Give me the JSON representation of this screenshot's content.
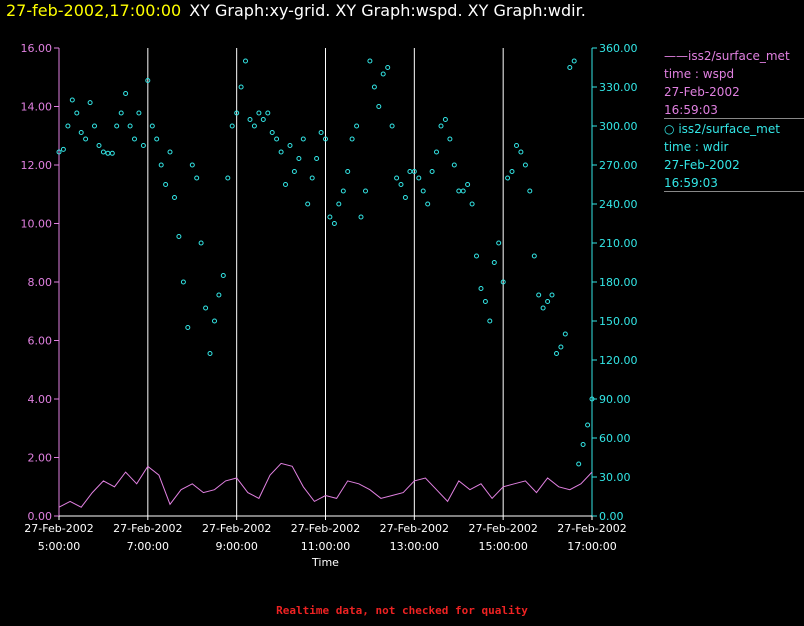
{
  "header": {
    "timestamp": "27-feb-2002,17:00:00",
    "title": "XY Graph:xy-grid.  XY Graph:wspd.  XY Graph:wdir."
  },
  "legend": [
    {
      "symbol": "——",
      "source": "iss2/surface_met",
      "var": "time : wspd",
      "date": "27-Feb-2002",
      "time": "16:59:03",
      "color": "#e080e0"
    },
    {
      "symbol": "○",
      "source": "iss2/surface_met",
      "var": "time : wdir",
      "date": "27-Feb-2002",
      "time": "16:59:03",
      "color": "#33e6e6"
    }
  ],
  "footer": "Realtime data, not checked for quality",
  "chart_data": {
    "type": "line",
    "xlabel": "Time",
    "x_ticks": [
      {
        "date": "27-Feb-2002",
        "time": "5:00:00",
        "h": 5
      },
      {
        "date": "27-Feb-2002",
        "time": "7:00:00",
        "h": 7
      },
      {
        "date": "27-Feb-2002",
        "time": "9:00:00",
        "h": 9
      },
      {
        "date": "27-Feb-2002",
        "time": "11:00:00",
        "h": 11
      },
      {
        "date": "27-Feb-2002",
        "time": "13:00:00",
        "h": 13
      },
      {
        "date": "27-Feb-2002",
        "time": "15:00:00",
        "h": 15
      },
      {
        "date": "27-Feb-2002",
        "time": "17:00:00",
        "h": 17
      }
    ],
    "xlim": [
      5,
      17
    ],
    "grid": "vertical",
    "legend_position": "right",
    "y_left": {
      "ylim": [
        0,
        16
      ],
      "ticks": [
        "0.00",
        "2.00",
        "4.00",
        "6.00",
        "8.00",
        "10.00",
        "12.00",
        "14.00",
        "16.00"
      ],
      "color": "#e080e0"
    },
    "y_right": {
      "ylim": [
        0,
        360
      ],
      "ticks": [
        "0.00",
        "30.00",
        "60.00",
        "90.00",
        "120.00",
        "150.00",
        "180.00",
        "210.00",
        "240.00",
        "270.00",
        "300.00",
        "330.00",
        "360.00"
      ],
      "color": "#33e6e6"
    },
    "series": [
      {
        "name": "wspd",
        "axis": "left",
        "style": "line",
        "color": "#e080e0",
        "x": [
          5.0,
          5.25,
          5.5,
          5.75,
          6.0,
          6.25,
          6.5,
          6.75,
          7.0,
          7.25,
          7.5,
          7.75,
          8.0,
          8.25,
          8.5,
          8.75,
          9.0,
          9.25,
          9.5,
          9.75,
          10.0,
          10.25,
          10.5,
          10.75,
          11.0,
          11.25,
          11.5,
          11.75,
          12.0,
          12.25,
          12.5,
          12.75,
          13.0,
          13.25,
          13.5,
          13.75,
          14.0,
          14.25,
          14.5,
          14.75,
          15.0,
          15.25,
          15.5,
          15.75,
          16.0,
          16.25,
          16.5,
          16.75,
          17.0
        ],
        "values": [
          0.3,
          0.5,
          0.3,
          0.8,
          1.2,
          1.0,
          1.5,
          1.1,
          1.7,
          1.4,
          0.4,
          0.9,
          1.1,
          0.8,
          0.9,
          1.2,
          1.3,
          0.8,
          0.6,
          1.4,
          1.8,
          1.7,
          1.0,
          0.5,
          0.7,
          0.6,
          1.2,
          1.1,
          0.9,
          0.6,
          0.7,
          0.8,
          1.2,
          1.3,
          0.9,
          0.5,
          1.2,
          0.9,
          1.1,
          0.6,
          1.0,
          1.1,
          1.2,
          0.8,
          1.3,
          1.0,
          0.9,
          1.1,
          1.5
        ]
      },
      {
        "name": "wdir",
        "axis": "right",
        "style": "scatter",
        "color": "#33e6e6",
        "x": [
          5.0,
          5.1,
          5.2,
          5.3,
          5.4,
          5.5,
          5.6,
          5.7,
          5.8,
          5.9,
          6.0,
          6.1,
          6.2,
          6.3,
          6.4,
          6.5,
          6.6,
          6.7,
          6.8,
          6.9,
          7.0,
          7.1,
          7.2,
          7.3,
          7.4,
          7.5,
          7.6,
          7.7,
          7.8,
          7.9,
          8.0,
          8.1,
          8.2,
          8.3,
          8.4,
          8.5,
          8.6,
          8.7,
          8.8,
          8.9,
          9.0,
          9.1,
          9.2,
          9.3,
          9.4,
          9.5,
          9.6,
          9.7,
          9.8,
          9.9,
          10.0,
          10.1,
          10.2,
          10.3,
          10.4,
          10.5,
          10.6,
          10.7,
          10.8,
          10.9,
          11.0,
          11.1,
          11.2,
          11.3,
          11.4,
          11.5,
          11.6,
          11.7,
          11.8,
          11.9,
          12.0,
          12.1,
          12.2,
          12.3,
          12.4,
          12.5,
          12.6,
          12.7,
          12.8,
          12.9,
          13.0,
          13.1,
          13.2,
          13.3,
          13.4,
          13.5,
          13.6,
          13.7,
          13.8,
          13.9,
          14.0,
          14.1,
          14.2,
          14.3,
          14.4,
          14.5,
          14.6,
          14.7,
          14.8,
          14.9,
          15.0,
          15.1,
          15.2,
          15.3,
          15.4,
          15.5,
          15.6,
          15.7,
          15.8,
          15.9,
          16.0,
          16.1,
          16.2,
          16.3,
          16.4,
          16.5,
          16.6,
          16.7,
          16.8,
          16.9,
          17.0
        ],
        "values": [
          280,
          282,
          300,
          320,
          310,
          295,
          290,
          318,
          300,
          285,
          280,
          279,
          279,
          300,
          310,
          325,
          300,
          290,
          310,
          285,
          335,
          300,
          290,
          270,
          255,
          280,
          245,
          215,
          180,
          145,
          270,
          260,
          210,
          160,
          125,
          150,
          170,
          185,
          260,
          300,
          310,
          330,
          350,
          305,
          300,
          310,
          305,
          310,
          295,
          290,
          280,
          255,
          285,
          265,
          275,
          290,
          240,
          260,
          275,
          295,
          290,
          230,
          225,
          240,
          250,
          265,
          290,
          300,
          230,
          250,
          350,
          330,
          315,
          340,
          345,
          300,
          260,
          255,
          245,
          265,
          265,
          260,
          250,
          240,
          265,
          280,
          300,
          305,
          290,
          270,
          250,
          250,
          255,
          240,
          200,
          175,
          165,
          150,
          195,
          210,
          180,
          260,
          265,
          285,
          280,
          270,
          250,
          200,
          170,
          160,
          165,
          170,
          125,
          130,
          140,
          345,
          350,
          40,
          55,
          70,
          90
        ]
      }
    ],
    "annotations": [
      "Realtime data, not checked for quality"
    ]
  }
}
